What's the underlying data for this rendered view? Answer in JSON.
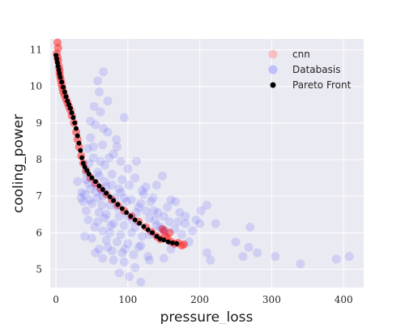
{
  "chart_data": {
    "type": "scatter",
    "xlabel": "pressure_loss",
    "ylabel": "cooling_power",
    "xlim": [
      -8,
      428
    ],
    "ylim": [
      4.5,
      11.3
    ],
    "x_ticks": [
      0,
      100,
      200,
      300,
      400
    ],
    "y_ticks": [
      5,
      6,
      7,
      8,
      9,
      10,
      11
    ],
    "grid": true,
    "legend_position": "top-right",
    "legend": [
      "cnn",
      "Databasis",
      "Pareto Front"
    ],
    "colors": {
      "cnn": "#ff2a2a",
      "Databasis": "#2222ff",
      "Pareto Front": "#000000",
      "background": "#eaeaf2",
      "grid": "#ffffff"
    },
    "series": [
      {
        "name": "cnn",
        "marker": "circle-translucent",
        "points": [
          [
            2,
            11.2
          ],
          [
            3,
            11.05
          ],
          [
            1,
            10.9
          ],
          [
            2,
            10.8
          ],
          [
            3,
            10.7
          ],
          [
            4,
            10.55
          ],
          [
            5,
            10.45
          ],
          [
            5,
            10.35
          ],
          [
            6,
            10.25
          ],
          [
            7,
            10.15
          ],
          [
            8,
            10.05
          ],
          [
            9,
            9.95
          ],
          [
            10,
            9.85
          ],
          [
            12,
            9.75
          ],
          [
            14,
            9.65
          ],
          [
            16,
            9.55
          ],
          [
            18,
            9.45
          ],
          [
            20,
            9.35
          ],
          [
            22,
            9.2
          ],
          [
            25,
            9.0
          ],
          [
            28,
            8.75
          ],
          [
            30,
            8.55
          ],
          [
            32,
            8.35
          ],
          [
            35,
            8.1
          ],
          [
            38,
            7.9
          ],
          [
            42,
            7.7
          ],
          [
            48,
            7.5
          ],
          [
            55,
            7.35
          ],
          [
            62,
            7.2
          ],
          [
            70,
            7.05
          ],
          [
            78,
            6.9
          ],
          [
            86,
            6.75
          ],
          [
            95,
            6.6
          ],
          [
            105,
            6.45
          ],
          [
            115,
            6.3
          ],
          [
            125,
            6.15
          ],
          [
            133,
            6.02
          ],
          [
            140,
            5.9
          ],
          [
            145,
            5.82
          ],
          [
            148,
            6.1
          ],
          [
            150,
            6.05
          ],
          [
            152,
            5.9
          ],
          [
            155,
            5.85
          ],
          [
            158,
            6.0
          ],
          [
            160,
            5.75
          ],
          [
            165,
            5.7
          ],
          [
            170,
            5.72
          ],
          [
            175,
            5.65
          ],
          [
            178,
            5.68
          ]
        ]
      },
      {
        "name": "Databasis",
        "marker": "circle-translucent",
        "points": [
          [
            95,
            9.15
          ],
          [
            58,
            10.15
          ],
          [
            62,
            9.3
          ],
          [
            55,
            8.95
          ],
          [
            65,
            8.4
          ],
          [
            72,
            8.75
          ],
          [
            48,
            8.6
          ],
          [
            85,
            8.35
          ],
          [
            52,
            8.05
          ],
          [
            90,
            7.95
          ],
          [
            68,
            7.85
          ],
          [
            100,
            7.75
          ],
          [
            42,
            7.65
          ],
          [
            60,
            7.55
          ],
          [
            78,
            7.6
          ],
          [
            110,
            7.5
          ],
          [
            45,
            7.35
          ],
          [
            55,
            7.3
          ],
          [
            70,
            7.25
          ],
          [
            88,
            7.2
          ],
          [
            120,
            7.15
          ],
          [
            40,
            7.05
          ],
          [
            65,
            7.0
          ],
          [
            95,
            6.95
          ],
          [
            105,
            6.9
          ],
          [
            135,
            6.95
          ],
          [
            140,
            7.3
          ],
          [
            148,
            7.55
          ],
          [
            38,
            6.85
          ],
          [
            50,
            6.8
          ],
          [
            75,
            6.75
          ],
          [
            85,
            6.7
          ],
          [
            115,
            6.7
          ],
          [
            125,
            6.6
          ],
          [
            155,
            6.7
          ],
          [
            160,
            6.9
          ],
          [
            42,
            6.6
          ],
          [
            60,
            6.55
          ],
          [
            70,
            6.5
          ],
          [
            100,
            6.45
          ],
          [
            130,
            6.4
          ],
          [
            150,
            6.45
          ],
          [
            170,
            6.3
          ],
          [
            180,
            6.25
          ],
          [
            45,
            6.35
          ],
          [
            58,
            6.3
          ],
          [
            80,
            6.25
          ],
          [
            95,
            6.2
          ],
          [
            110,
            6.15
          ],
          [
            140,
            6.2
          ],
          [
            65,
            6.05
          ],
          [
            75,
            6.0
          ],
          [
            90,
            5.95
          ],
          [
            105,
            6.0
          ],
          [
            120,
            5.9
          ],
          [
            50,
            5.85
          ],
          [
            70,
            5.8
          ],
          [
            85,
            5.75
          ],
          [
            100,
            5.7
          ],
          [
            118,
            5.65
          ],
          [
            60,
            5.55
          ],
          [
            78,
            5.5
          ],
          [
            92,
            5.45
          ],
          [
            108,
            5.4
          ],
          [
            128,
            5.35
          ],
          [
            150,
            5.3
          ],
          [
            160,
            5.55
          ],
          [
            65,
            5.3
          ],
          [
            95,
            5.2
          ],
          [
            110,
            5.05
          ],
          [
            130,
            5.25
          ],
          [
            88,
            4.9
          ],
          [
            102,
            4.8
          ],
          [
            118,
            4.65
          ],
          [
            55,
            5.45
          ],
          [
            40,
            5.9
          ],
          [
            35,
            6.95
          ],
          [
            30,
            7.4
          ],
          [
            36,
            7.1
          ],
          [
            46,
            7.9
          ],
          [
            52,
            8.35
          ],
          [
            48,
            9.05
          ],
          [
            66,
            8.85
          ],
          [
            72,
            9.6
          ],
          [
            80,
            8.15
          ],
          [
            58,
            7.65
          ],
          [
            64,
            7.15
          ],
          [
            92,
            7.45
          ],
          [
            98,
            6.85
          ],
          [
            112,
            6.55
          ],
          [
            122,
            7.05
          ],
          [
            132,
            6.85
          ],
          [
            145,
            6.15
          ],
          [
            165,
            6.1
          ],
          [
            175,
            5.95
          ],
          [
            190,
            6.05
          ],
          [
            185,
            5.75
          ],
          [
            210,
            5.45
          ],
          [
            200,
            6.25
          ],
          [
            195,
            6.35
          ],
          [
            202,
            6.6
          ],
          [
            222,
            6.25
          ],
          [
            215,
            5.25
          ],
          [
            250,
            5.75
          ],
          [
            260,
            5.35
          ],
          [
            268,
            5.6
          ],
          [
            270,
            6.15
          ],
          [
            280,
            5.45
          ],
          [
            305,
            5.35
          ],
          [
            340,
            5.15
          ],
          [
            390,
            5.28
          ],
          [
            408,
            5.35
          ],
          [
            210,
            6.75
          ],
          [
            138,
            6.35
          ],
          [
            152,
            6.05
          ],
          [
            68,
            6.4
          ],
          [
            82,
            6.95
          ],
          [
            56,
            7.1
          ],
          [
            47,
            6.9
          ],
          [
            62,
            7.95
          ],
          [
            74,
            8.05
          ],
          [
            84,
            8.55
          ],
          [
            44,
            8.3
          ],
          [
            53,
            9.45
          ],
          [
            60,
            9.85
          ],
          [
            66,
            10.4
          ],
          [
            112,
            7.95
          ],
          [
            125,
            7.25
          ],
          [
            142,
            6.55
          ],
          [
            158,
            6.3
          ],
          [
            172,
            6.55
          ],
          [
            130,
            5.95
          ],
          [
            115,
            5.6
          ],
          [
            96,
            5.55
          ],
          [
            80,
            5.25
          ],
          [
            72,
            5.6
          ],
          [
            106,
            6.35
          ],
          [
            88,
            6.45
          ],
          [
            76,
            6.2
          ],
          [
            64,
            6.75
          ],
          [
            54,
            6.15
          ],
          [
            42,
            7.45
          ],
          [
            48,
            7.2
          ],
          [
            58,
            6.95
          ],
          [
            68,
            7.4
          ],
          [
            78,
            7.3
          ],
          [
            90,
            7.1
          ],
          [
            102,
            7.3
          ],
          [
            118,
            6.8
          ],
          [
            136,
            6.6
          ],
          [
            166,
            6.85
          ],
          [
            180,
            6.45
          ]
        ]
      },
      {
        "name": "Pareto Front",
        "marker": "circle",
        "points": [
          [
            0,
            10.85
          ],
          [
            1,
            10.75
          ],
          [
            2,
            10.65
          ],
          [
            3,
            10.55
          ],
          [
            4,
            10.45
          ],
          [
            5,
            10.35
          ],
          [
            6,
            10.25
          ],
          [
            8,
            10.12
          ],
          [
            10,
            9.98
          ],
          [
            12,
            9.85
          ],
          [
            14,
            9.72
          ],
          [
            16,
            9.6
          ],
          [
            18,
            9.5
          ],
          [
            20,
            9.4
          ],
          [
            22,
            9.28
          ],
          [
            24,
            9.15
          ],
          [
            26,
            9.0
          ],
          [
            28,
            8.85
          ],
          [
            30,
            8.65
          ],
          [
            32,
            8.45
          ],
          [
            34,
            8.25
          ],
          [
            36,
            8.05
          ],
          [
            38,
            7.9
          ],
          [
            40,
            7.8
          ],
          [
            43,
            7.7
          ],
          [
            46,
            7.6
          ],
          [
            50,
            7.5
          ],
          [
            55,
            7.4
          ],
          [
            60,
            7.28
          ],
          [
            65,
            7.18
          ],
          [
            70,
            7.08
          ],
          [
            75,
            6.98
          ],
          [
            80,
            6.88
          ],
          [
            86,
            6.77
          ],
          [
            92,
            6.66
          ],
          [
            98,
            6.55
          ],
          [
            104,
            6.45
          ],
          [
            110,
            6.35
          ],
          [
            116,
            6.26
          ],
          [
            122,
            6.17
          ],
          [
            128,
            6.08
          ],
          [
            134,
            6.0
          ],
          [
            140,
            5.9
          ],
          [
            145,
            5.83
          ],
          [
            150,
            5.8
          ],
          [
            156,
            5.75
          ],
          [
            162,
            5.72
          ],
          [
            168,
            5.7
          ]
        ]
      }
    ]
  }
}
